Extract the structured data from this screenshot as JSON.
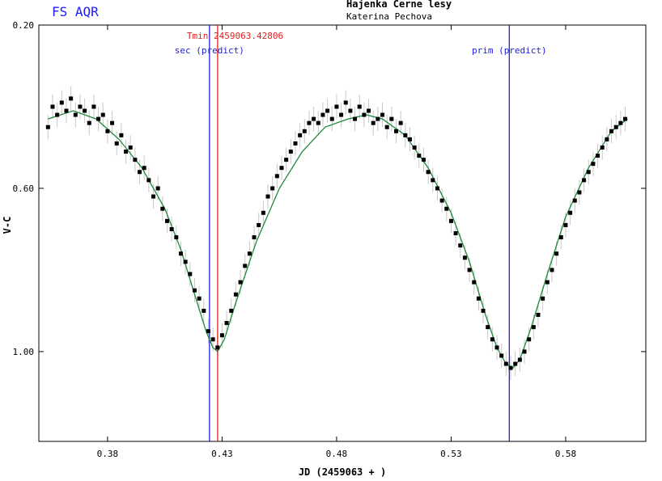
{
  "header": {
    "star_name": "FS AQR",
    "observatory": "Hajenka Cerne lesy",
    "observer": "Katerina Pechova"
  },
  "chart_data": {
    "type": "scatter",
    "title": "FS AQR",
    "xlabel": "JD (2459063 + )",
    "ylabel": "V-C",
    "xlim": [
      0.35,
      0.615
    ],
    "ylim": [
      1.22,
      0.2
    ],
    "y_inverted": true,
    "x_ticks": [
      "0.38",
      "0.43",
      "0.48",
      "0.53",
      "0.58"
    ],
    "x_tick_values": [
      0.38,
      0.43,
      0.48,
      0.53,
      0.58
    ],
    "y_ticks": [
      "0.20",
      "0.60",
      "1.00"
    ],
    "y_tick_values": [
      0.2,
      0.6,
      1.0
    ],
    "colors": {
      "points": "#000000",
      "error_bars": "#c8c8c8",
      "fit": "#1e8a3c",
      "tmin": "#e02020",
      "predict": "#2020e0",
      "star_name": "#1a1aff"
    },
    "vertical_lines": [
      {
        "label": "Tmin 2459063.42806",
        "x": 0.42806,
        "color": "#e02020"
      },
      {
        "label": "sec (predict)",
        "x": 0.4245,
        "color": "#2020e0"
      },
      {
        "label": "prim (predict)",
        "x": 0.5554,
        "color": "#2020e0"
      }
    ],
    "fit_curve": {
      "name": "fit",
      "x": [
        0.354,
        0.365,
        0.375,
        0.385,
        0.395,
        0.405,
        0.412,
        0.418,
        0.423,
        0.426,
        0.428,
        0.431,
        0.436,
        0.445,
        0.455,
        0.465,
        0.475,
        0.485,
        0.493,
        0.5,
        0.51,
        0.52,
        0.53,
        0.538,
        0.545,
        0.55,
        0.554,
        0.557,
        0.56,
        0.565,
        0.572,
        0.58,
        0.59,
        0.6,
        0.607
      ],
      "y": [
        0.43,
        0.41,
        0.43,
        0.48,
        0.55,
        0.65,
        0.75,
        0.86,
        0.95,
        0.99,
        1.0,
        0.97,
        0.88,
        0.73,
        0.6,
        0.51,
        0.45,
        0.43,
        0.42,
        0.43,
        0.47,
        0.55,
        0.66,
        0.78,
        0.91,
        0.99,
        1.03,
        1.04,
        1.02,
        0.94,
        0.81,
        0.67,
        0.55,
        0.46,
        0.43
      ]
    },
    "series": [
      {
        "name": "V-C",
        "x": [
          0.354,
          0.356,
          0.358,
          0.36,
          0.362,
          0.364,
          0.366,
          0.368,
          0.37,
          0.372,
          0.374,
          0.376,
          0.378,
          0.38,
          0.382,
          0.384,
          0.386,
          0.388,
          0.39,
          0.392,
          0.394,
          0.396,
          0.398,
          0.4,
          0.402,
          0.404,
          0.406,
          0.408,
          0.41,
          0.412,
          0.414,
          0.416,
          0.418,
          0.42,
          0.422,
          0.424,
          0.426,
          0.428,
          0.43,
          0.432,
          0.434,
          0.436,
          0.438,
          0.44,
          0.442,
          0.444,
          0.446,
          0.448,
          0.45,
          0.452,
          0.454,
          0.456,
          0.458,
          0.46,
          0.462,
          0.464,
          0.466,
          0.468,
          0.47,
          0.472,
          0.474,
          0.476,
          0.478,
          0.48,
          0.482,
          0.484,
          0.486,
          0.488,
          0.49,
          0.492,
          0.494,
          0.496,
          0.498,
          0.5,
          0.502,
          0.504,
          0.506,
          0.508,
          0.51,
          0.512,
          0.514,
          0.516,
          0.518,
          0.52,
          0.522,
          0.524,
          0.526,
          0.528,
          0.53,
          0.532,
          0.534,
          0.536,
          0.538,
          0.54,
          0.542,
          0.544,
          0.546,
          0.548,
          0.55,
          0.552,
          0.554,
          0.556,
          0.558,
          0.56,
          0.562,
          0.564,
          0.566,
          0.568,
          0.57,
          0.572,
          0.574,
          0.576,
          0.578,
          0.58,
          0.582,
          0.584,
          0.586,
          0.588,
          0.59,
          0.592,
          0.594,
          0.596,
          0.598,
          0.6,
          0.602,
          0.604,
          0.606
        ],
        "y": [
          0.45,
          0.4,
          0.42,
          0.39,
          0.41,
          0.38,
          0.42,
          0.4,
          0.41,
          0.44,
          0.4,
          0.43,
          0.42,
          0.46,
          0.44,
          0.49,
          0.47,
          0.51,
          0.5,
          0.53,
          0.56,
          0.55,
          0.58,
          0.62,
          0.6,
          0.65,
          0.68,
          0.7,
          0.72,
          0.76,
          0.78,
          0.81,
          0.85,
          0.87,
          0.9,
          0.95,
          0.97,
          0.99,
          0.96,
          0.93,
          0.9,
          0.86,
          0.83,
          0.79,
          0.76,
          0.72,
          0.69,
          0.66,
          0.62,
          0.6,
          0.57,
          0.55,
          0.53,
          0.51,
          0.49,
          0.47,
          0.46,
          0.44,
          0.43,
          0.44,
          0.42,
          0.41,
          0.43,
          0.4,
          0.42,
          0.39,
          0.41,
          0.43,
          0.4,
          0.42,
          0.41,
          0.44,
          0.43,
          0.42,
          0.45,
          0.43,
          0.46,
          0.44,
          0.47,
          0.48,
          0.5,
          0.52,
          0.53,
          0.56,
          0.58,
          0.6,
          0.63,
          0.65,
          0.68,
          0.71,
          0.74,
          0.77,
          0.8,
          0.83,
          0.87,
          0.9,
          0.94,
          0.97,
          0.99,
          1.01,
          1.03,
          1.04,
          1.03,
          1.02,
          1.0,
          0.97,
          0.94,
          0.91,
          0.87,
          0.83,
          0.8,
          0.76,
          0.72,
          0.69,
          0.66,
          0.63,
          0.61,
          0.58,
          0.56,
          0.54,
          0.52,
          0.5,
          0.48,
          0.46,
          0.45,
          0.44,
          0.43
        ],
        "error": 0.03
      }
    ]
  }
}
